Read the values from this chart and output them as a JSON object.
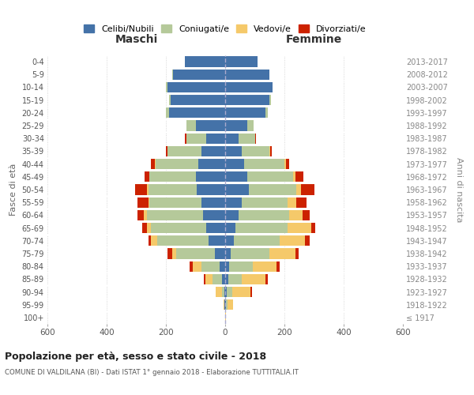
{
  "age_groups": [
    "100+",
    "95-99",
    "90-94",
    "85-89",
    "80-84",
    "75-79",
    "70-74",
    "65-69",
    "60-64",
    "55-59",
    "50-54",
    "45-49",
    "40-44",
    "35-39",
    "30-34",
    "25-29",
    "20-24",
    "15-19",
    "10-14",
    "5-9",
    "0-4"
  ],
  "birth_years": [
    "≤ 1917",
    "1918-1922",
    "1923-1927",
    "1928-1932",
    "1933-1937",
    "1938-1942",
    "1943-1947",
    "1948-1952",
    "1953-1957",
    "1958-1962",
    "1963-1967",
    "1968-1972",
    "1973-1977",
    "1978-1982",
    "1983-1987",
    "1988-1992",
    "1993-1997",
    "1998-2002",
    "2003-2007",
    "2008-2012",
    "2013-2017"
  ],
  "colors": {
    "celibe": "#4472a8",
    "coniugato": "#b5c99a",
    "vedovo": "#f5c96a",
    "divorziato": "#cc2200"
  },
  "maschi": {
    "celibe": [
      0,
      2,
      4,
      12,
      20,
      35,
      55,
      65,
      75,
      80,
      95,
      100,
      90,
      80,
      65,
      100,
      190,
      185,
      195,
      175,
      135
    ],
    "coniugato": [
      0,
      0,
      8,
      30,
      60,
      130,
      175,
      185,
      190,
      175,
      165,
      155,
      145,
      115,
      65,
      30,
      10,
      5,
      5,
      3,
      0
    ],
    "vedovo": [
      0,
      3,
      20,
      25,
      30,
      15,
      20,
      15,
      10,
      5,
      3,
      2,
      2,
      1,
      0,
      0,
      0,
      0,
      0,
      0,
      0
    ],
    "divorziato": [
      0,
      0,
      0,
      5,
      10,
      15,
      10,
      15,
      20,
      35,
      40,
      15,
      15,
      5,
      5,
      0,
      0,
      0,
      0,
      0,
      0
    ]
  },
  "femmine": {
    "nubile": [
      0,
      2,
      5,
      10,
      14,
      18,
      30,
      35,
      45,
      55,
      80,
      75,
      65,
      55,
      45,
      75,
      135,
      150,
      160,
      150,
      110
    ],
    "coniugata": [
      0,
      5,
      20,
      45,
      80,
      130,
      155,
      175,
      170,
      155,
      160,
      155,
      135,
      95,
      55,
      20,
      10,
      5,
      0,
      0,
      0
    ],
    "vedova": [
      2,
      20,
      60,
      80,
      80,
      90,
      85,
      80,
      45,
      30,
      15,
      8,
      5,
      2,
      1,
      0,
      0,
      0,
      0,
      0,
      0
    ],
    "divorziata": [
      0,
      0,
      5,
      10,
      10,
      10,
      15,
      15,
      25,
      35,
      45,
      25,
      10,
      5,
      2,
      0,
      0,
      0,
      0,
      0,
      0
    ]
  },
  "title": "Popolazione per età, sesso e stato civile - 2018",
  "subtitle": "COMUNE DI VALDILANA (BI) - Dati ISTAT 1° gennaio 2018 - Elaborazione TUTTITALIA.IT",
  "xlabel_left": "Maschi",
  "xlabel_right": "Femmine",
  "ylabel_left": "Fasce di età",
  "ylabel_right": "Anni di nascita",
  "xlim": 600,
  "legend_labels": [
    "Celibi/Nubili",
    "Coniugati/e",
    "Vedovi/e",
    "Divorziati/e"
  ]
}
